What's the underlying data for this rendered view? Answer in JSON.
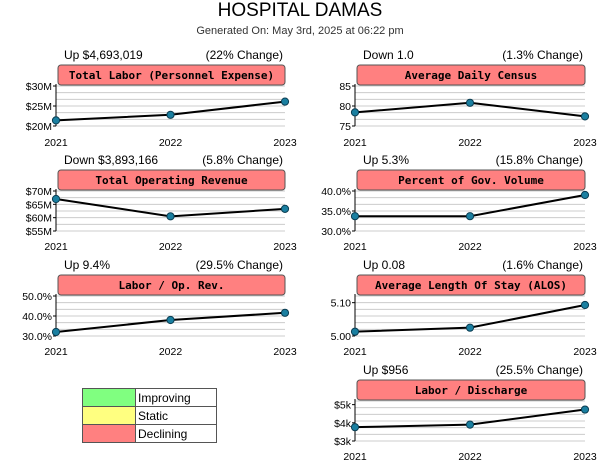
{
  "page": {
    "title": "HOSPITAL DAMAS",
    "subtitle": "Generated On: May 3rd, 2025 at 06:22 pm"
  },
  "colors": {
    "improving": "#80ff80",
    "static": "#ffff80",
    "declining": "#ff8080",
    "line": "#000000",
    "marker": "#1a7fa0",
    "grid": "#cccccc"
  },
  "legend": [
    {
      "label": "Improving",
      "color": "#80ff80"
    },
    {
      "label": "Static",
      "color": "#ffff80"
    },
    {
      "label": "Declining",
      "color": "#ff8080"
    }
  ],
  "chart_data": [
    {
      "type": "line",
      "title": "Total Labor (Personnel Expense)",
      "change": "Up $4,693,019",
      "pct": "(22% Change)",
      "status": "declining",
      "x": [
        "2021",
        "2022",
        "2023"
      ],
      "values": [
        21.4,
        22.8,
        26.1
      ],
      "ylim": [
        20,
        30
      ],
      "yticks": [
        {
          "v": 20,
          "label": "$20M"
        },
        {
          "v": 25,
          "label": "$25M"
        },
        {
          "v": 30,
          "label": "$30M"
        }
      ],
      "grid": true
    },
    {
      "type": "line",
      "title": "Average Daily Census",
      "change": "Down 1.0",
      "pct": "(1.3% Change)",
      "status": "declining",
      "x": [
        "2021",
        "2022",
        "2023"
      ],
      "values": [
        78.4,
        80.8,
        77.4
      ],
      "ylim": [
        75,
        85
      ],
      "yticks": [
        {
          "v": 75,
          "label": "75"
        },
        {
          "v": 80,
          "label": "80"
        },
        {
          "v": 85,
          "label": "85"
        }
      ],
      "grid": true
    },
    {
      "type": "line",
      "title": "Total Operating Revenue",
      "change": "Down $3,893,166",
      "pct": "(5.8% Change)",
      "status": "declining",
      "x": [
        "2021",
        "2022",
        "2023"
      ],
      "values": [
        67,
        60.5,
        63.3
      ],
      "ylim": [
        55,
        70
      ],
      "yticks": [
        {
          "v": 55,
          "label": "$55M"
        },
        {
          "v": 60,
          "label": "$60M"
        },
        {
          "v": 65,
          "label": "$65M"
        },
        {
          "v": 70,
          "label": "$70M"
        }
      ],
      "grid": true
    },
    {
      "type": "line",
      "title": "Percent of Gov. Volume",
      "change": "Up 5.3%",
      "pct": "(15.8% Change)",
      "status": "declining",
      "x": [
        "2021",
        "2022",
        "2023"
      ],
      "values": [
        33.7,
        33.7,
        39.0
      ],
      "ylim": [
        30,
        40
      ],
      "yticks": [
        {
          "v": 30,
          "label": "30.0%"
        },
        {
          "v": 35,
          "label": "35.0%"
        },
        {
          "v": 40,
          "label": "40.0%"
        }
      ],
      "grid": true
    },
    {
      "type": "line",
      "title": "Labor / Op. Rev.",
      "change": "Up 9.4%",
      "pct": "(29.5% Change)",
      "status": "declining",
      "x": [
        "2021",
        "2022",
        "2023"
      ],
      "values": [
        32.0,
        38.0,
        41.6
      ],
      "ylim": [
        30,
        50
      ],
      "yticks": [
        {
          "v": 30,
          "label": "30.0%"
        },
        {
          "v": 40,
          "label": "40.0%"
        },
        {
          "v": 50,
          "label": "50.0%"
        }
      ],
      "grid": true
    },
    {
      "type": "line",
      "title": "Average Length Of Stay (ALOS)",
      "change": "Up 0.08",
      "pct": "(1.6% Change)",
      "status": "declining",
      "x": [
        "2021",
        "2022",
        "2023"
      ],
      "values": [
        5.013,
        5.025,
        5.093
      ],
      "ylim": [
        5.0,
        5.12
      ],
      "yticks": [
        {
          "v": 5.0,
          "label": "5.00"
        },
        {
          "v": 5.1,
          "label": "5.10"
        }
      ],
      "grid": true
    },
    {
      "type": "line",
      "title": "Labor / Discharge",
      "change": "Up $956",
      "pct": "(25.5% Change)",
      "status": "declining",
      "x": [
        "2021",
        "2022",
        "2023"
      ],
      "values": [
        3.76,
        3.9,
        4.73
      ],
      "ylim": [
        3,
        5.2
      ],
      "yticks": [
        {
          "v": 3,
          "label": "$3k"
        },
        {
          "v": 4,
          "label": "$4k"
        },
        {
          "v": 5,
          "label": "$5k"
        }
      ],
      "grid": true
    }
  ]
}
